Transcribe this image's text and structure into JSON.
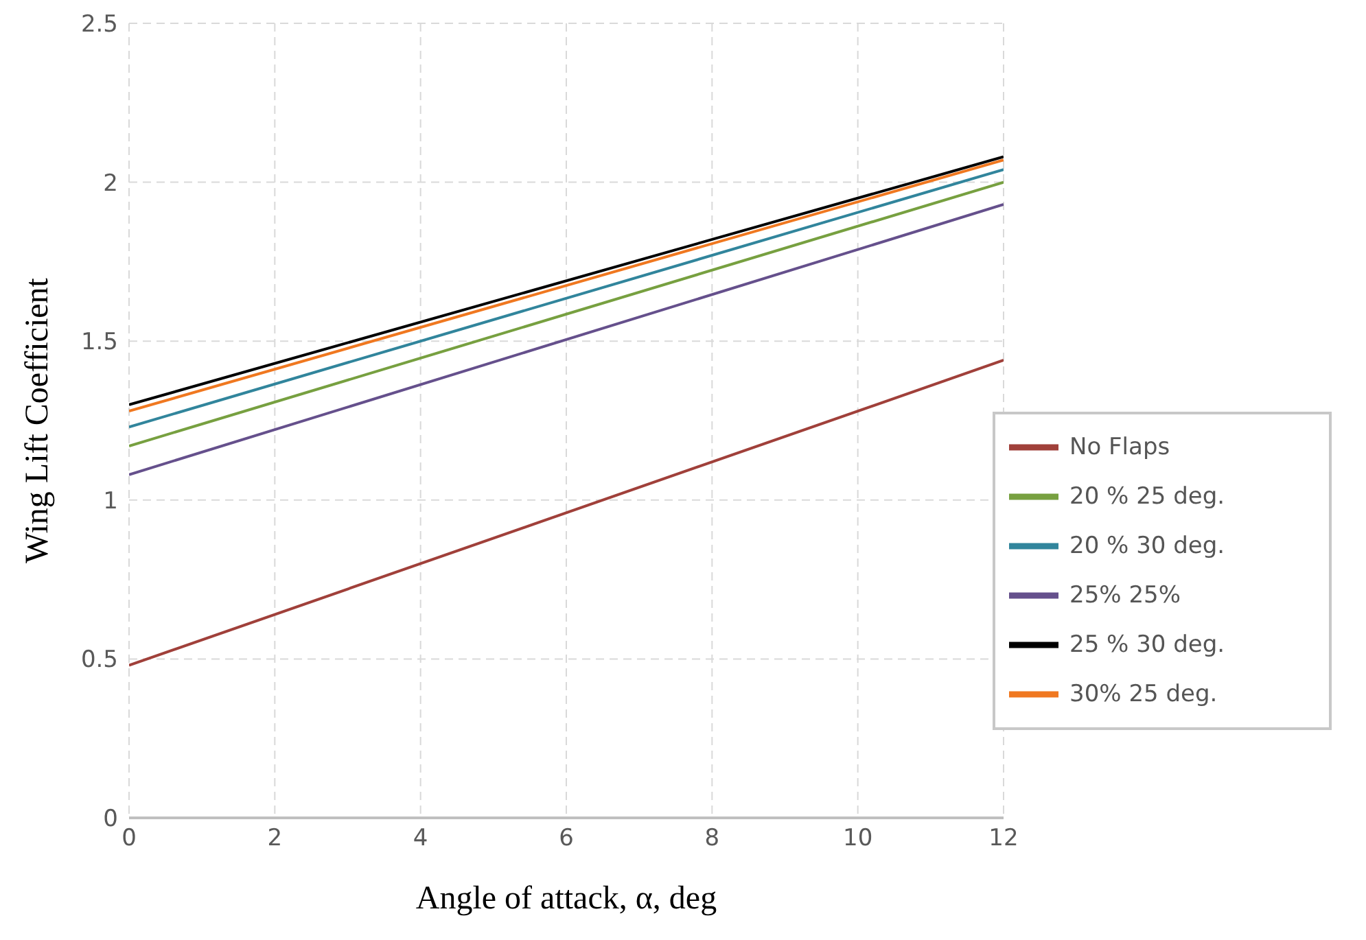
{
  "chart_data": {
    "type": "line",
    "xlabel": "Angle of attack, α, deg",
    "ylabel": "Wing Lift Coefficient",
    "x": [
      0,
      12
    ],
    "series": [
      {
        "name": "No Flaps",
        "color": "#a0403a",
        "values": [
          0.48,
          1.44
        ]
      },
      {
        "name": "20 % 25 deg.",
        "color": "#77a040",
        "values": [
          1.17,
          2.0
        ]
      },
      {
        "name": "20 % 30 deg.",
        "color": "#31859c",
        "values": [
          1.23,
          2.04
        ]
      },
      {
        "name": "25% 25%",
        "color": "#65508c",
        "values": [
          1.08,
          1.93
        ]
      },
      {
        "name": "25 % 30 deg.",
        "color": "#000000",
        "values": [
          1.3,
          2.08
        ]
      },
      {
        "name": "30% 25 deg.",
        "color": "#f07820",
        "values": [
          1.28,
          2.07
        ]
      }
    ],
    "xlim": [
      0,
      12
    ],
    "xticks": [
      0,
      2,
      4,
      6,
      8,
      10,
      12
    ],
    "ylim": [
      0,
      2.5
    ],
    "yticks": [
      0,
      0.5,
      1,
      1.5,
      2,
      2.5
    ],
    "grid": true,
    "legend": "bottom right",
    "marker": "none",
    "line_style": "solid"
  }
}
